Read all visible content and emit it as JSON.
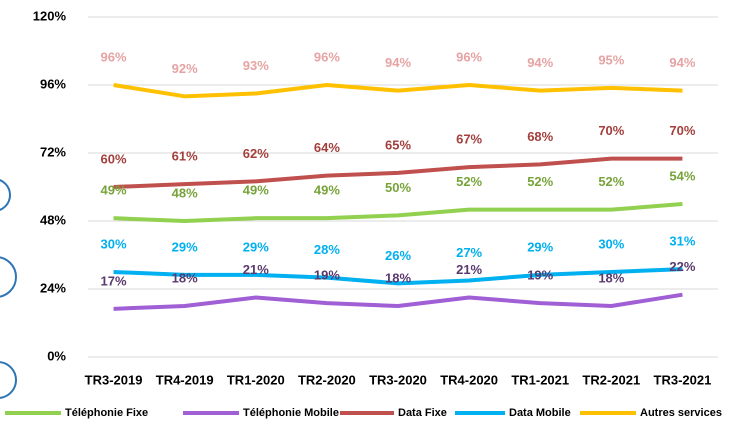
{
  "chart_data": {
    "type": "line",
    "categories": [
      "TR3-2019",
      "TR4-2019",
      "TR1-2020",
      "TR2-2020",
      "TR3-2020",
      "TR4-2020",
      "TR1-2021",
      "TR2-2021",
      "TR3-2021"
    ],
    "series": [
      {
        "name": "Téléphonie Fixe",
        "color": "#92d050",
        "label_color": "#76a33a",
        "values": [
          49,
          48,
          49,
          49,
          50,
          52,
          52,
          52,
          54
        ],
        "value_labels": [
          "49%",
          "48%",
          "49%",
          "49%",
          "50%",
          "52%",
          "52%",
          "52%",
          "54%"
        ]
      },
      {
        "name": "Téléphonie Mobile",
        "color": "#a05fd5",
        "label_color": "#5a3a6e",
        "values": [
          17,
          18,
          21,
          19,
          18,
          21,
          19,
          18,
          22
        ],
        "value_labels": [
          "17%",
          "18%",
          "21%",
          "19%",
          "18%",
          "21%",
          "19%",
          "18%",
          "22%"
        ]
      },
      {
        "name": "Data Fixe",
        "color": "#c0504d",
        "label_color": "#a33f3c",
        "values": [
          60,
          61,
          62,
          64,
          65,
          67,
          68,
          70,
          70
        ],
        "value_labels": [
          "60%",
          "61%",
          "62%",
          "64%",
          "65%",
          "67%",
          "68%",
          "70%",
          "70%"
        ]
      },
      {
        "name": "Data Mobile",
        "color": "#00b0f0",
        "label_color": "#00b0f0",
        "values": [
          30,
          29,
          29,
          28,
          26,
          27,
          29,
          30,
          31
        ],
        "value_labels": [
          "30%",
          "29%",
          "29%",
          "28%",
          "26%",
          "27%",
          "29%",
          "30%",
          "31%"
        ]
      },
      {
        "name": "Autres services",
        "color": "#ffc000",
        "label_color": "#e6a3a3",
        "values": [
          96,
          92,
          93,
          96,
          94,
          96,
          94,
          95,
          94
        ],
        "value_labels": [
          "96%",
          "92%",
          "93%",
          "96%",
          "94%",
          "96%",
          "94%",
          "95%",
          "94%"
        ]
      }
    ],
    "ylim": [
      0,
      120
    ],
    "yticks": [
      {
        "value": 0,
        "label": "0%"
      },
      {
        "value": 24,
        "label": "24%"
      },
      {
        "value": 48,
        "label": "48%"
      },
      {
        "value": 72,
        "label": "72%"
      },
      {
        "value": 96,
        "label": "96%"
      },
      {
        "value": 120,
        "label": "120%"
      }
    ],
    "grid": true,
    "legend": "bottom"
  }
}
